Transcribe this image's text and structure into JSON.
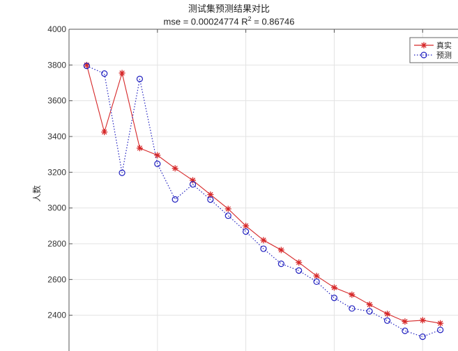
{
  "chart_data": {
    "type": "line",
    "title": "测试集预测结果对比",
    "subtitle": {
      "mse_prefix": "mse = 0.00024774 R",
      "r_sup": "2",
      "r_value": " = 0.86746"
    },
    "xlabel": "",
    "ylabel": "人数",
    "ylim": [
      2200,
      4000
    ],
    "yticks": [
      2400,
      2600,
      2800,
      3000,
      3200,
      3400,
      3600,
      3800,
      4000
    ],
    "xlim": [
      0,
      22
    ],
    "grid": true,
    "legend_position": "top-right",
    "x": [
      1,
      2,
      3,
      4,
      5,
      6,
      7,
      8,
      9,
      10,
      11,
      12,
      13,
      14,
      15,
      16,
      17,
      18,
      19,
      20,
      21
    ],
    "series": [
      {
        "name": "真实",
        "color": "#d62728",
        "marker": "asterisk",
        "values": [
          3800,
          3425,
          3755,
          3335,
          3295,
          3222,
          3155,
          3075,
          2995,
          2900,
          2820,
          2765,
          2695,
          2620,
          2555,
          2515,
          2460,
          2408,
          2365,
          2372,
          2355
        ]
      },
      {
        "name": "预测",
        "color": "#1f1fbf",
        "marker": "circle",
        "values": [
          3795,
          3752,
          3197,
          3722,
          3247,
          3048,
          3132,
          3047,
          2957,
          2868,
          2772,
          2688,
          2650,
          2588,
          2497,
          2438,
          2422,
          2370,
          2313,
          2280,
          2318
        ]
      }
    ]
  }
}
